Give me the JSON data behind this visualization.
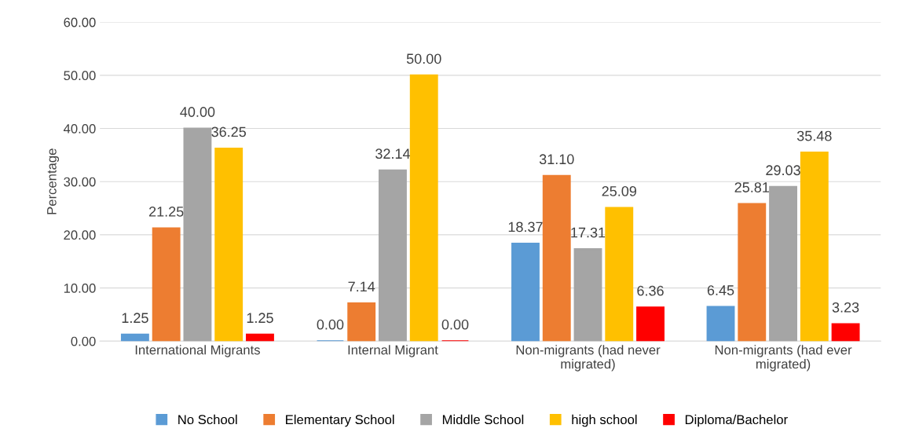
{
  "chart_data": {
    "type": "bar",
    "ylabel": "Percentage",
    "categories": [
      "International Migrants",
      "Internal Migrant",
      "Non-migrants (had never\nmigrated)",
      "Non-migrants (had ever\nmigrated)"
    ],
    "series": [
      {
        "name": "No School",
        "color": "#5b9bd5",
        "values": [
          1.25,
          0,
          18.37,
          6.45
        ],
        "value_labels": [
          "1.25",
          "0.00",
          "18.37",
          "6.45"
        ]
      },
      {
        "name": "Elementary School",
        "color": "#ed7d31",
        "values": [
          21.25,
          7.14,
          31.1,
          25.81
        ],
        "value_labels": [
          "21.25",
          "7.14",
          "31.10",
          "25.81"
        ]
      },
      {
        "name": "Middle School",
        "color": "#a5a5a5",
        "values": [
          40,
          32.14,
          17.31,
          29.03
        ],
        "value_labels": [
          "40.00",
          "32.14",
          "17.31",
          "29.03"
        ]
      },
      {
        "name": "high school",
        "color": "#ffc000",
        "values": [
          36.25,
          50,
          25.09,
          35.48
        ],
        "value_labels": [
          "36.25",
          "50.00",
          "25.09",
          "35.48"
        ]
      },
      {
        "name": "Diploma/Bachelor",
        "color": "#ff0000",
        "values": [
          1.25,
          0,
          6.36,
          3.23
        ],
        "value_labels": [
          "1.25",
          "0.00",
          "6.36",
          "3.23"
        ]
      }
    ],
    "ylim": [
      0,
      60
    ],
    "yticks": [
      {
        "value": 0,
        "label": "0.00"
      },
      {
        "value": 10,
        "label": "10.00"
      },
      {
        "value": 20,
        "label": "20.00"
      },
      {
        "value": 30,
        "label": "30.00"
      },
      {
        "value": 40,
        "label": "40.00"
      },
      {
        "value": 50,
        "label": "50.00"
      },
      {
        "value": 60,
        "label": "60.00"
      }
    ],
    "grid": "y",
    "legend": "bottom"
  }
}
